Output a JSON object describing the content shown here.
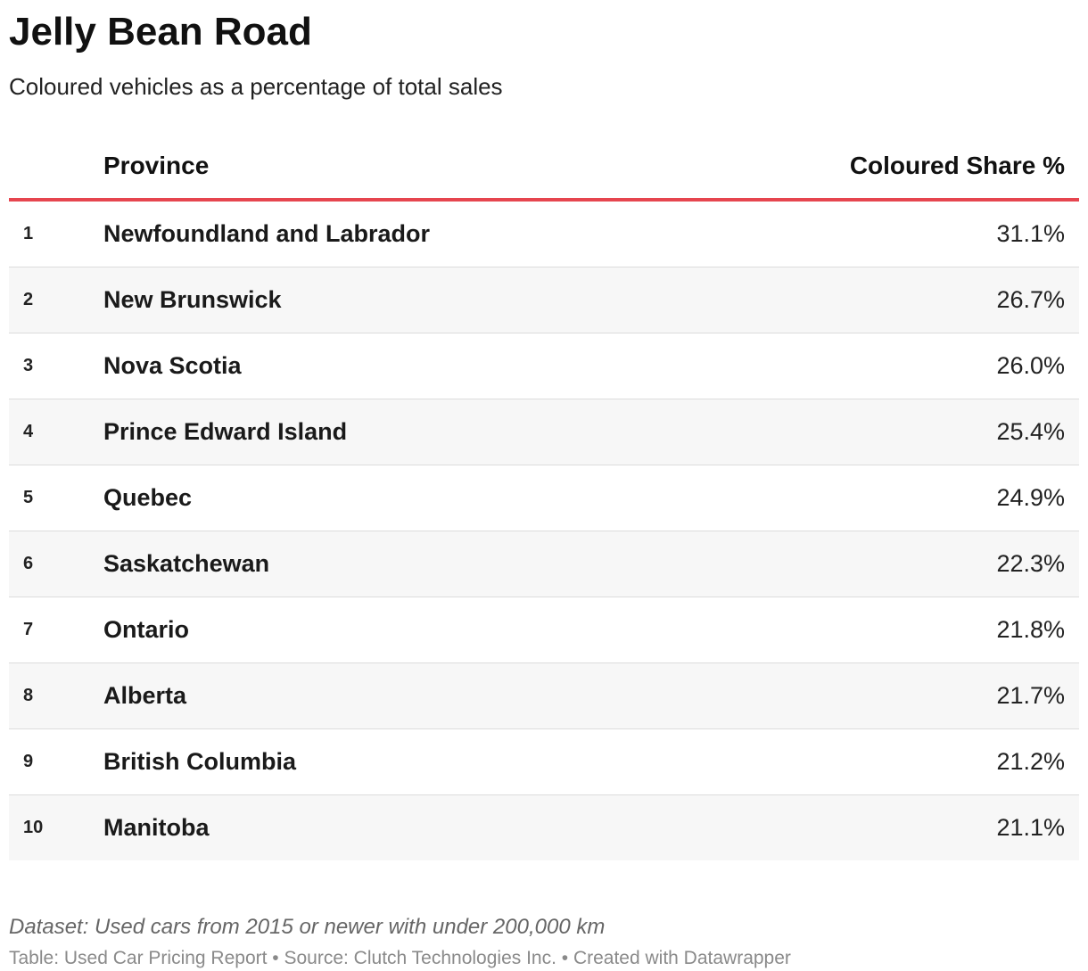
{
  "chart_data": {
    "type": "table",
    "title": "Jelly Bean Road",
    "subtitle": "Coloured vehicles as a percentage of total sales",
    "columns": [
      "Province",
      "Coloured Share %"
    ],
    "rows": [
      {
        "rank": "1",
        "province": "Newfoundland and Labrador",
        "share": "31.1%"
      },
      {
        "rank": "2",
        "province": "New Brunswick",
        "share": "26.7%"
      },
      {
        "rank": "3",
        "province": "Nova Scotia",
        "share": "26.0%"
      },
      {
        "rank": "4",
        "province": "Prince Edward Island",
        "share": "25.4%"
      },
      {
        "rank": "5",
        "province": "Quebec",
        "share": "24.9%"
      },
      {
        "rank": "6",
        "province": "Saskatchewan",
        "share": "22.3%"
      },
      {
        "rank": "7",
        "province": "Ontario",
        "share": "21.8%"
      },
      {
        "rank": "8",
        "province": "Alberta",
        "share": "21.7%"
      },
      {
        "rank": "9",
        "province": "British Columbia",
        "share": "21.2%"
      },
      {
        "rank": "10",
        "province": "Manitoba",
        "share": "21.1%"
      }
    ],
    "values": [
      31.1,
      26.7,
      26.0,
      25.4,
      24.9,
      22.3,
      21.8,
      21.7,
      21.2,
      21.1
    ],
    "note": "Dataset: Used cars from 2015 or newer with under 200,000 km",
    "footer": "Table: Used Car Pricing Report • Source: Clutch Technologies Inc. • Created with Datawrapper"
  },
  "colors": {
    "header_rule": "#e6454f",
    "alt_row_background": "#f7f7f7",
    "row_divider": "#dcdcdc",
    "footer_text": "#8a8a8a"
  }
}
